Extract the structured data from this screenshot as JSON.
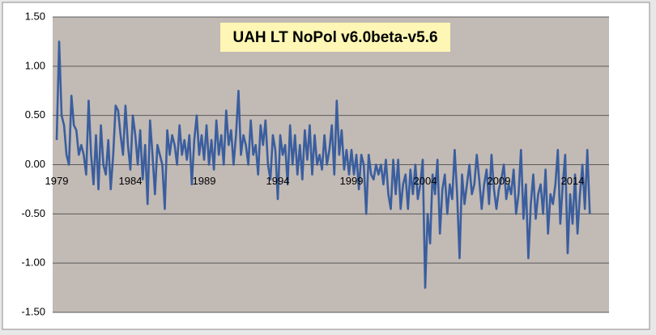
{
  "chart_data": {
    "type": "line",
    "title": "UAH LT NoPol v6.0beta-v5.6",
    "categories": [
      "1979",
      null,
      null,
      null,
      null,
      null,
      null,
      null,
      null,
      null,
      null,
      null,
      null,
      null,
      null,
      null,
      null,
      null,
      null,
      null,
      null,
      null,
      null,
      null,
      null,
      null,
      null,
      null,
      null,
      null,
      "1984",
      null,
      null,
      null,
      null,
      null,
      null,
      null,
      null,
      null,
      null,
      null,
      null,
      null,
      null,
      null,
      null,
      null,
      null,
      null,
      null,
      null,
      null,
      null,
      null,
      null,
      null,
      null,
      null,
      null,
      "1989",
      null,
      null,
      null,
      null,
      null,
      null,
      null,
      null,
      null,
      null,
      null,
      null,
      null,
      null,
      null,
      null,
      null,
      null,
      null,
      null,
      null,
      null,
      null,
      null,
      null,
      null,
      null,
      null,
      null,
      "1994",
      null,
      null,
      null,
      null,
      null,
      null,
      null,
      null,
      null,
      null,
      null,
      null,
      null,
      null,
      null,
      null,
      null,
      null,
      null,
      null,
      null,
      null,
      null,
      null,
      null,
      null,
      null,
      null,
      null,
      "1999",
      null,
      null,
      null,
      null,
      null,
      null,
      null,
      null,
      null,
      null,
      null,
      null,
      null,
      null,
      null,
      null,
      null,
      null,
      null,
      null,
      null,
      null,
      null,
      null,
      null,
      null,
      null,
      null,
      null,
      "2004",
      null,
      null,
      null,
      null,
      null,
      null,
      null,
      null,
      null,
      null,
      null,
      null,
      null,
      null,
      null,
      null,
      null,
      null,
      null,
      null,
      null,
      null,
      null,
      null,
      null,
      null,
      null,
      null,
      null,
      "2009",
      null,
      null,
      null,
      null,
      null,
      null,
      null,
      null,
      null,
      null,
      null,
      null,
      null,
      null,
      null,
      null,
      null,
      null,
      null,
      null,
      null,
      null,
      null,
      null,
      null,
      null,
      null,
      null,
      null,
      "2014",
      null,
      null,
      null,
      null,
      null,
      null,
      null
    ],
    "series": [
      {
        "color": "#3a5e9e",
        "values": [
          0.25,
          1.25,
          0.5,
          0.4,
          0.1,
          0.0,
          0.7,
          0.4,
          0.35,
          0.1,
          0.2,
          0.1,
          -0.1,
          0.65,
          0.1,
          -0.2,
          0.3,
          -0.25,
          0.4,
          0.0,
          -0.1,
          0.25,
          -0.25,
          0.1,
          0.6,
          0.55,
          0.3,
          0.1,
          0.6,
          0.2,
          -0.05,
          0.5,
          0.3,
          0.0,
          0.35,
          -0.15,
          0.2,
          -0.4,
          0.45,
          0.1,
          -0.3,
          0.2,
          0.1,
          0.0,
          -0.45,
          0.35,
          0.1,
          0.3,
          0.2,
          0.0,
          0.4,
          0.1,
          0.25,
          0.05,
          0.3,
          -0.2,
          0.25,
          0.5,
          0.1,
          0.3,
          0.05,
          0.4,
          0.0,
          0.25,
          -0.05,
          0.45,
          0.1,
          0.3,
          0.0,
          0.55,
          0.2,
          0.35,
          0.0,
          0.3,
          0.75,
          0.1,
          0.3,
          0.2,
          0.0,
          0.45,
          0.1,
          0.2,
          -0.1,
          0.4,
          0.2,
          0.45,
          0.0,
          -0.15,
          0.3,
          0.15,
          -0.35,
          0.3,
          0.1,
          0.2,
          -0.2,
          0.4,
          0.0,
          0.3,
          -0.1,
          0.2,
          -0.15,
          0.35,
          0.05,
          0.4,
          -0.1,
          0.3,
          0.0,
          0.1,
          -0.05,
          0.3,
          0.0,
          0.15,
          0.4,
          -0.1,
          0.65,
          0.1,
          0.35,
          -0.05,
          0.15,
          -0.1,
          0.15,
          -0.1,
          0.1,
          -0.25,
          0.1,
          0.0,
          -0.5,
          0.1,
          -0.1,
          -0.15,
          0.0,
          -0.1,
          0.0,
          -0.2,
          0.05,
          -0.3,
          -0.45,
          0.05,
          -0.3,
          0.05,
          -0.45,
          -0.2,
          -0.1,
          -0.45,
          -0.05,
          -0.3,
          0.0,
          -0.35,
          -0.2,
          0.05,
          -1.25,
          -0.5,
          -0.8,
          -0.1,
          -0.3,
          0.05,
          -0.7,
          -0.25,
          -0.1,
          -0.5,
          -0.2,
          -0.35,
          0.15,
          -0.3,
          -0.95,
          -0.1,
          -0.4,
          -0.2,
          0.0,
          -0.3,
          -0.2,
          0.1,
          -0.15,
          -0.45,
          -0.2,
          -0.05,
          -0.4,
          0.1,
          -0.25,
          -0.45,
          -0.25,
          -0.15,
          0.0,
          -0.35,
          -0.2,
          -0.3,
          -0.05,
          -0.5,
          -0.3,
          0.15,
          -0.55,
          -0.2,
          -0.95,
          -0.4,
          -0.1,
          -0.55,
          -0.3,
          -0.2,
          -0.5,
          -0.05,
          -0.7,
          -0.3,
          -0.4,
          -0.2,
          0.15,
          -0.6,
          -0.2,
          0.1,
          -0.9,
          -0.3,
          -0.6,
          -0.1,
          -0.7,
          -0.3,
          0.0,
          -0.45,
          0.15,
          -0.5
        ]
      }
    ],
    "ylim": [
      -1.5,
      1.5
    ],
    "yticks": [
      {
        "value": -1.5,
        "label": "-1.50"
      },
      {
        "value": -1,
        "label": "-1.00"
      },
      {
        "value": -0.5,
        "label": "-0.50"
      },
      {
        "value": 0,
        "label": "0.00"
      },
      {
        "value": 0.5,
        "label": "0.50"
      },
      {
        "value": 1,
        "label": "1.00"
      },
      {
        "value": 1.5,
        "label": "1.50"
      }
    ],
    "grid": true
  }
}
